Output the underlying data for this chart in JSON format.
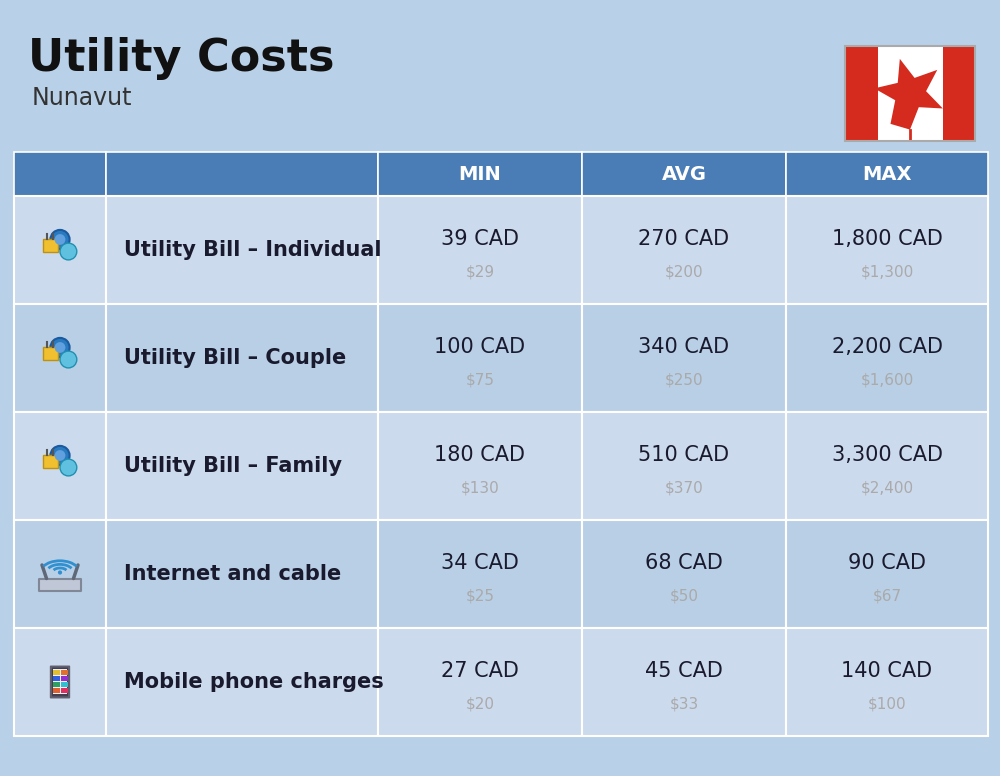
{
  "title": "Utility Costs",
  "subtitle": "Nunavut",
  "bg_color": "#b8d0e8",
  "header_color": "#4a7db5",
  "header_text_color": "#ffffff",
  "row_colors": [
    "#ccdaed",
    "#b8cfe6"
  ],
  "cell_text_color": "#1a1a2e",
  "sub_text_color": "#aaaaaa",
  "grid_line_color": "#ffffff",
  "columns": [
    "MIN",
    "AVG",
    "MAX"
  ],
  "rows": [
    {
      "label": "Utility Bill – Individual",
      "type": "utility",
      "values_cad": [
        "39 CAD",
        "270 CAD",
        "1,800 CAD"
      ],
      "values_usd": [
        "$29",
        "$200",
        "$1,300"
      ]
    },
    {
      "label": "Utility Bill – Couple",
      "type": "utility",
      "values_cad": [
        "100 CAD",
        "340 CAD",
        "2,200 CAD"
      ],
      "values_usd": [
        "$75",
        "$250",
        "$1,600"
      ]
    },
    {
      "label": "Utility Bill – Family",
      "type": "utility",
      "values_cad": [
        "180 CAD",
        "510 CAD",
        "3,300 CAD"
      ],
      "values_usd": [
        "$130",
        "$370",
        "$2,400"
      ]
    },
    {
      "label": "Internet and cable",
      "type": "internet",
      "values_cad": [
        "34 CAD",
        "68 CAD",
        "90 CAD"
      ],
      "values_usd": [
        "$25",
        "$50",
        "$67"
      ]
    },
    {
      "label": "Mobile phone charges",
      "type": "mobile",
      "values_cad": [
        "27 CAD",
        "45 CAD",
        "140 CAD"
      ],
      "values_usd": [
        "$20",
        "$33",
        "$100"
      ]
    }
  ],
  "flag_red": "#d52b1e",
  "flag_white": "#ffffff",
  "title_fontsize": 32,
  "subtitle_fontsize": 17,
  "header_fontsize": 14,
  "label_fontsize": 15,
  "value_fontsize": 15,
  "sub_value_fontsize": 11
}
